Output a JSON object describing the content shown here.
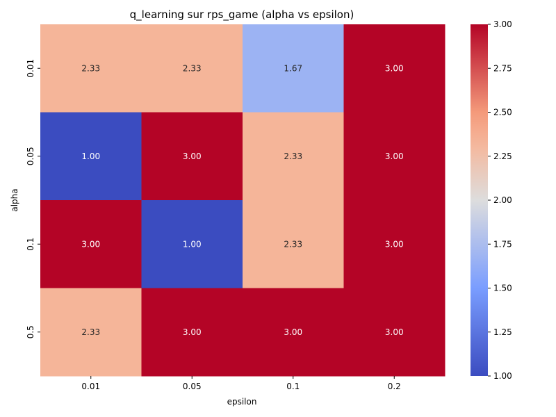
{
  "chart_data": {
    "type": "heatmap",
    "title": "q_learning sur rps_game (alpha vs epsilon)",
    "xlabel": "epsilon",
    "ylabel": "alpha",
    "x_categories": [
      "0.01",
      "0.05",
      "0.1",
      "0.2"
    ],
    "y_categories": [
      "0.01",
      "0.05",
      "0.1",
      "0.5"
    ],
    "values": [
      [
        2.33,
        2.33,
        1.67,
        3.0
      ],
      [
        1.0,
        3.0,
        2.33,
        3.0
      ],
      [
        3.0,
        1.0,
        2.33,
        3.0
      ],
      [
        2.33,
        3.0,
        3.0,
        3.0
      ]
    ],
    "colormap": "coolwarm",
    "vmin": 1.0,
    "vmax": 3.0,
    "colorbar_ticks": [
      "1.00",
      "1.25",
      "1.50",
      "1.75",
      "2.00",
      "2.25",
      "2.50",
      "2.75",
      "3.00"
    ],
    "grid": false
  }
}
